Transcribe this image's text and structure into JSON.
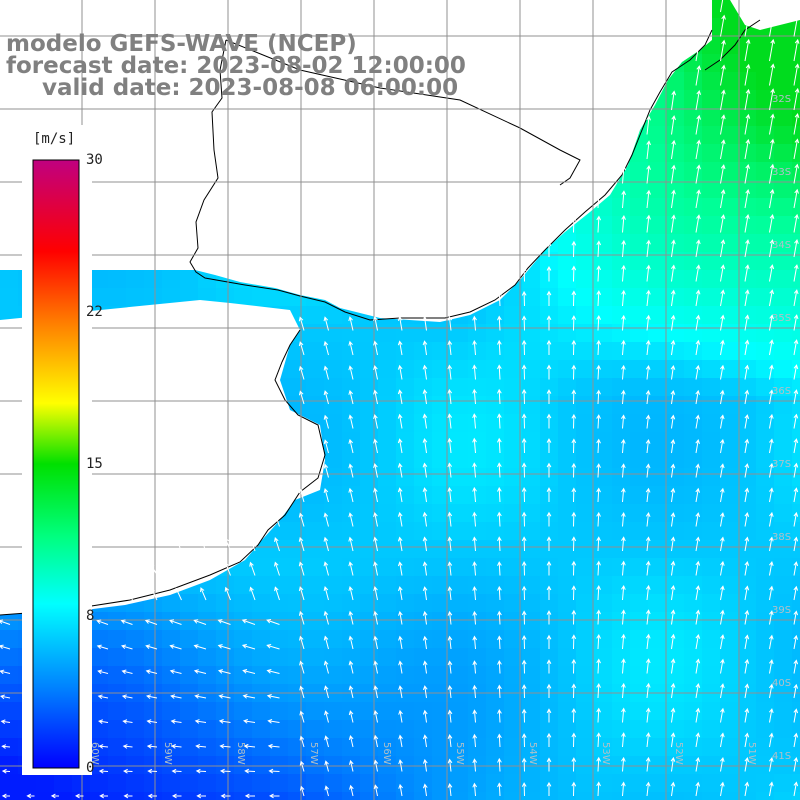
{
  "title": {
    "line1": "modelo GEFS-WAVE (NCEP)",
    "line2": "forecast date: 2023-08-02 12:00:00",
    "line3": "valid date: 2023-08-08 06:00:00"
  },
  "colorbar": {
    "unit": "[m/s]",
    "ticks": [
      "30",
      "22",
      "15",
      "8",
      "0"
    ],
    "tick_values": [
      30,
      22,
      15,
      8,
      0
    ],
    "min": 0,
    "max": 30,
    "colors": [
      "#0000ff",
      "#0080ff",
      "#00c0ff",
      "#00ffff",
      "#00ff80",
      "#00e000",
      "#80ff00",
      "#ffff00",
      "#ffa000",
      "#ff4000",
      "#ff0000",
      "#e00060",
      "#b00080"
    ]
  },
  "map": {
    "lat_labels": [
      "32S",
      "33S",
      "34S",
      "35S",
      "36S",
      "37S",
      "38S",
      "39S",
      "40S",
      "41S"
    ],
    "lon_labels": [
      "60W",
      "59W",
      "58W",
      "57W",
      "56W",
      "55W",
      "54W",
      "53W",
      "52W",
      "51W"
    ],
    "field": "wind speed and direction",
    "land_color": "#ffffff",
    "grid_color": "#909090"
  }
}
